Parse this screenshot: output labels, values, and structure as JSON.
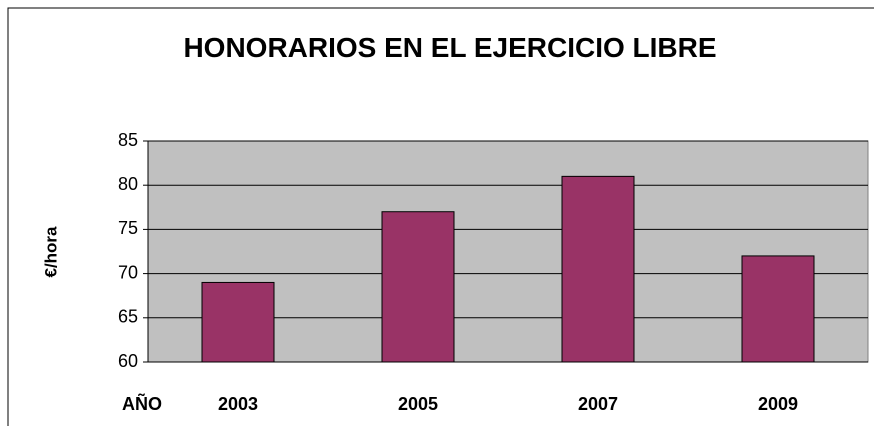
{
  "chart_data": {
    "type": "bar",
    "title": "HONORARIOS EN EL EJERCICIO LIBRE",
    "y_label": "€/hora",
    "x_label": "AÑO",
    "categories": [
      "2003",
      "2005",
      "2007",
      "2009"
    ],
    "values": [
      69,
      77,
      81,
      72
    ],
    "color": "#993366",
    "ylim": [
      60,
      85
    ],
    "yticks": [
      60,
      65,
      70,
      75,
      80,
      85
    ],
    "grid": true
  }
}
